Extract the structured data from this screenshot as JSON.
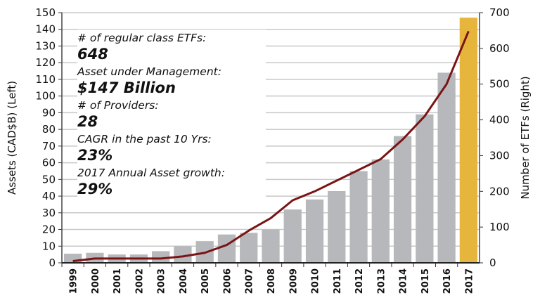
{
  "chart_data": {
    "type": "bar",
    "categories": [
      "1999",
      "2000",
      "2001",
      "2002",
      "2003",
      "2004",
      "2005",
      "2006",
      "2007",
      "2008",
      "2009",
      "2010",
      "2011",
      "2012",
      "2013",
      "2014",
      "2015",
      "2016",
      "2017"
    ],
    "series": [
      {
        "kind": "bar",
        "axis": "left",
        "values": [
          5.5,
          6,
          5,
          5,
          7,
          10,
          13,
          17,
          18,
          20,
          32,
          38,
          43,
          55,
          62,
          76,
          89,
          114,
          147
        ]
      },
      {
        "kind": "line",
        "axis": "right",
        "values": [
          5,
          12,
          12,
          12,
          12,
          18,
          28,
          50,
          90,
          125,
          175,
          200,
          230,
          260,
          290,
          345,
          410,
          500,
          648
        ]
      }
    ],
    "ylabel": "Assets (CAD$B) (Left)",
    "y2label": "Number of ETFs (Right)",
    "ylim": [
      0,
      150
    ],
    "y2lim": [
      0,
      700
    ],
    "yticks": [
      0,
      10,
      20,
      30,
      40,
      50,
      60,
      70,
      80,
      90,
      100,
      110,
      120,
      130,
      140,
      150
    ],
    "y2ticks": [
      0,
      100,
      200,
      300,
      400,
      500,
      600,
      700
    ],
    "grid": true,
    "colors": {
      "bar": "#b7b8bc",
      "highlight_bar": "#e6b53c",
      "line": "#7a1416"
    },
    "annotations": [
      {
        "label": "# of regular class ETFs:",
        "value": "648"
      },
      {
        "label": "Asset under Management:",
        "value": "$147 Billion"
      },
      {
        "label": "# of Providers:",
        "value": "28"
      },
      {
        "label": "CAGR in the past 10 Yrs:",
        "value": "23%"
      },
      {
        "label": "2017 Annual Asset growth:",
        "value": "29%"
      }
    ]
  }
}
